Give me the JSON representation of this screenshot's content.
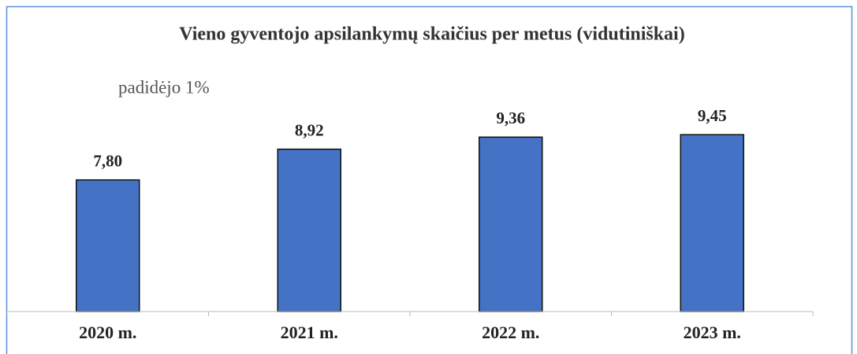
{
  "chart_data": {
    "type": "bar",
    "title": "Vieno gyventojo apsilankymų skaičius per metus (vidutiniškai)",
    "annotation": "padidėjo 1%",
    "categories": [
      "2020 m.",
      "2021 m.",
      "2022 m.",
      "2023 m."
    ],
    "values": [
      7.8,
      8.92,
      9.36,
      9.45
    ],
    "value_labels": [
      "7,80",
      "8,92",
      "9,36",
      "9,45"
    ],
    "color": "#4472c4",
    "ylim": [
      3,
      10
    ]
  }
}
